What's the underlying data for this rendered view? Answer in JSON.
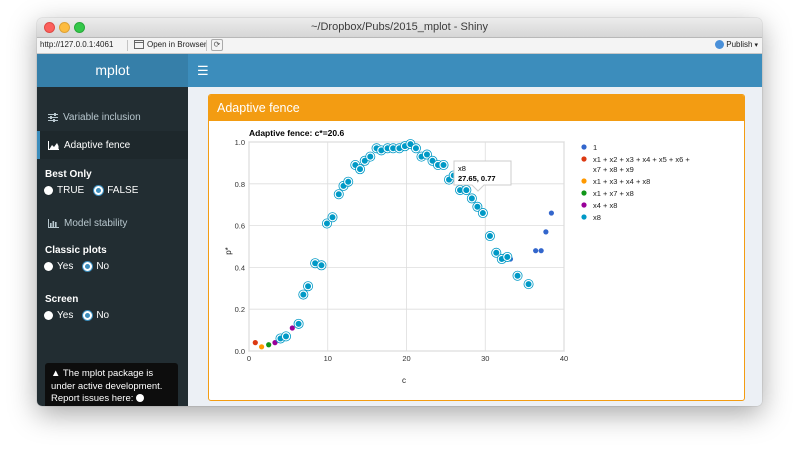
{
  "window": {
    "title": "~/Dropbox/Pubs/2015_mplot - Shiny",
    "url": "http://127.0.0.1:4061",
    "open_in_browser": "Open in Browser",
    "publish": "Publish"
  },
  "sidebar": {
    "brand": "mplot",
    "items": [
      {
        "label": "Variable inclusion",
        "icon": "sliders-icon"
      },
      {
        "label": "Adaptive fence",
        "icon": "area-chart-icon"
      },
      {
        "label": "Model stability",
        "icon": "bar-chart-icon"
      }
    ],
    "best_only": {
      "label": "Best Only",
      "options": [
        "TRUE",
        "FALSE"
      ],
      "selected": "FALSE"
    },
    "classic_plots": {
      "label": "Classic plots",
      "options": [
        "Yes",
        "No"
      ],
      "selected": "No"
    },
    "screen": {
      "label": "Screen",
      "options": [
        "Yes",
        "No"
      ],
      "selected": "No"
    },
    "notice": "The mplot package is under active development. Report issues here:"
  },
  "box": {
    "title": "Adaptive fence"
  },
  "tooltip": {
    "name": "x8",
    "value": "27.65, 0.77"
  },
  "colors": {
    "accent": "#f39c12",
    "header": "#3c8dbc",
    "sidebar": "#222d32"
  },
  "chart_data": {
    "type": "scatter",
    "title": "Adaptive fence: c*=20.6",
    "xlabel": "c",
    "ylabel": "p*",
    "xlim": [
      0,
      40
    ],
    "ylim": [
      0,
      1.0
    ],
    "xticks": [
      0,
      10,
      20,
      30,
      40
    ],
    "yticks": [
      0.0,
      0.2,
      0.4,
      0.6,
      0.8,
      1.0
    ],
    "grid": true,
    "legend_position": "right",
    "series": [
      {
        "name": "1",
        "color": "#3366cc",
        "points": [
          [
            33.2,
            0.44
          ],
          [
            36.4,
            0.48
          ],
          [
            37.1,
            0.48
          ],
          [
            37.7,
            0.57
          ],
          [
            38.4,
            0.66
          ]
        ]
      },
      {
        "name": "x1 + x2 + x3 + x4 + x5 + x6 + x7 + x8 + x9",
        "color": "#dc3912",
        "points": [
          [
            0.8,
            0.04
          ]
        ]
      },
      {
        "name": "x1 + x3 + x4 + x8",
        "color": "#ff9900",
        "points": [
          [
            1.6,
            0.02
          ]
        ]
      },
      {
        "name": "x1 + x7 + x8",
        "color": "#109618",
        "points": [
          [
            2.5,
            0.03
          ]
        ]
      },
      {
        "name": "x4 + x8",
        "color": "#990099",
        "points": [
          [
            3.3,
            0.04
          ],
          [
            5.5,
            0.11
          ]
        ]
      },
      {
        "name": "x8",
        "color": "#0099c6",
        "points": [
          [
            4.0,
            0.06
          ],
          [
            4.7,
            0.07
          ],
          [
            6.3,
            0.13
          ],
          [
            6.9,
            0.27
          ],
          [
            7.5,
            0.31
          ],
          [
            8.4,
            0.42
          ],
          [
            9.2,
            0.41
          ],
          [
            9.9,
            0.61
          ],
          [
            10.6,
            0.64
          ],
          [
            11.4,
            0.75
          ],
          [
            12.0,
            0.79
          ],
          [
            12.6,
            0.81
          ],
          [
            13.5,
            0.89
          ],
          [
            14.1,
            0.87
          ],
          [
            14.7,
            0.91
          ],
          [
            15.4,
            0.93
          ],
          [
            16.2,
            0.97
          ],
          [
            16.8,
            0.96
          ],
          [
            17.6,
            0.97
          ],
          [
            18.3,
            0.97
          ],
          [
            19.1,
            0.97
          ],
          [
            19.8,
            0.98
          ],
          [
            20.5,
            0.99
          ],
          [
            21.2,
            0.97
          ],
          [
            21.9,
            0.93
          ],
          [
            22.6,
            0.94
          ],
          [
            23.3,
            0.91
          ],
          [
            24.0,
            0.89
          ],
          [
            24.7,
            0.89
          ],
          [
            25.4,
            0.82
          ],
          [
            26.0,
            0.84
          ],
          [
            26.8,
            0.77
          ],
          [
            27.6,
            0.77
          ],
          [
            28.3,
            0.73
          ],
          [
            29.0,
            0.69
          ],
          [
            29.7,
            0.66
          ],
          [
            30.6,
            0.55
          ],
          [
            31.4,
            0.47
          ],
          [
            32.1,
            0.44
          ],
          [
            32.8,
            0.45
          ],
          [
            34.1,
            0.36
          ],
          [
            35.5,
            0.32
          ]
        ]
      }
    ]
  }
}
